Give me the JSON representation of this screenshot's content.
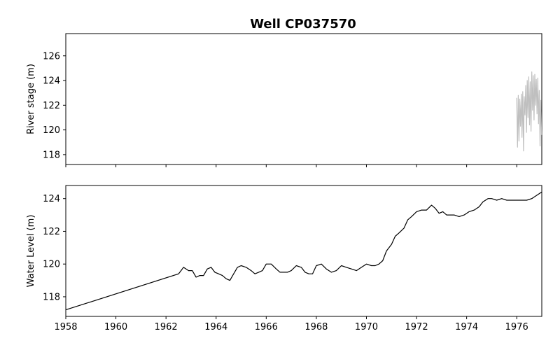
{
  "title": "Well CP037570",
  "chart_data": [
    {
      "type": "line",
      "ylabel": "River stage (m)",
      "xlim": [
        1958.0,
        1977.0
      ],
      "ylim": [
        117.2,
        127.8
      ],
      "x_ticks": [
        1958,
        1960,
        1962,
        1964,
        1966,
        1968,
        1970,
        1972,
        1974,
        1976
      ],
      "x_tick_labels_visible": false,
      "y_ticks": [
        118,
        120,
        122,
        124,
        126
      ],
      "y_tick_labels": [
        "118",
        "120",
        "122",
        "124",
        "126"
      ],
      "series": [
        {
          "color": "#bfbfbf",
          "x": [
            1976.0,
            1976.03,
            1976.06,
            1976.09,
            1976.12,
            1976.15,
            1976.18,
            1976.21,
            1976.24,
            1976.27,
            1976.3,
            1976.33,
            1976.36,
            1976.39,
            1976.42,
            1976.45,
            1976.48,
            1976.51,
            1976.54,
            1976.57,
            1976.6,
            1976.63,
            1976.66,
            1976.69,
            1976.72,
            1976.75,
            1976.78,
            1976.81,
            1976.84,
            1976.87,
            1976.9,
            1976.93,
            1976.96,
            1976.99
          ],
          "y": [
            122.6,
            118.6,
            122.8,
            119.1,
            122.5,
            120.3,
            122.9,
            119.4,
            123.1,
            118.3,
            122.7,
            121.2,
            123.6,
            119.8,
            124.0,
            121.0,
            124.3,
            120.4,
            123.9,
            119.9,
            124.7,
            121.6,
            124.4,
            120.8,
            124.5,
            122.0,
            124.1,
            121.3,
            124.2,
            120.5,
            123.2,
            118.7,
            122.4,
            119.6
          ]
        }
      ]
    },
    {
      "type": "line",
      "ylabel": "Water Level (m)",
      "xlim": [
        1958.0,
        1977.0
      ],
      "ylim": [
        116.8,
        124.8
      ],
      "x_ticks": [
        1958,
        1960,
        1962,
        1964,
        1966,
        1968,
        1970,
        1972,
        1974,
        1976
      ],
      "x_tick_labels": [
        "1958",
        "1960",
        "1962",
        "1964",
        "1966",
        "1968",
        "1970",
        "1972",
        "1974",
        "1976"
      ],
      "y_ticks": [
        118,
        120,
        122,
        124
      ],
      "y_tick_labels": [
        "118",
        "120",
        "122",
        "124"
      ],
      "series": [
        {
          "color": "#000000",
          "x": [
            1958.0,
            1962.5,
            1962.7,
            1962.9,
            1963.05,
            1963.2,
            1963.35,
            1963.5,
            1963.65,
            1963.8,
            1963.95,
            1964.1,
            1964.25,
            1964.4,
            1964.55,
            1964.7,
            1964.85,
            1965.0,
            1965.2,
            1965.4,
            1965.55,
            1965.7,
            1965.85,
            1966.0,
            1966.2,
            1966.4,
            1966.55,
            1966.7,
            1966.85,
            1967.0,
            1967.2,
            1967.4,
            1967.55,
            1967.7,
            1967.85,
            1968.0,
            1968.2,
            1968.4,
            1968.6,
            1968.8,
            1969.0,
            1969.2,
            1969.4,
            1969.6,
            1969.8,
            1970.0,
            1970.2,
            1970.35,
            1970.5,
            1970.65,
            1970.8,
            1971.0,
            1971.15,
            1971.3,
            1971.5,
            1971.65,
            1971.8,
            1972.0,
            1972.2,
            1972.4,
            1972.6,
            1972.75,
            1972.9,
            1973.05,
            1973.2,
            1973.35,
            1973.5,
            1973.7,
            1973.9,
            1974.1,
            1974.3,
            1974.5,
            1974.65,
            1974.85,
            1975.0,
            1975.2,
            1975.4,
            1975.6,
            1975.8,
            1976.0,
            1976.2,
            1976.4,
            1976.6,
            1976.8,
            1977.0
          ],
          "y": [
            117.2,
            119.4,
            119.8,
            119.6,
            119.6,
            119.2,
            119.3,
            119.3,
            119.7,
            119.8,
            119.5,
            119.4,
            119.3,
            119.1,
            119.0,
            119.4,
            119.8,
            119.9,
            119.8,
            119.6,
            119.4,
            119.5,
            119.6,
            120.0,
            120.0,
            119.7,
            119.5,
            119.5,
            119.5,
            119.6,
            119.9,
            119.8,
            119.5,
            119.4,
            119.4,
            119.9,
            120.0,
            119.7,
            119.5,
            119.6,
            119.9,
            119.8,
            119.7,
            119.6,
            119.8,
            120.0,
            119.9,
            119.9,
            120.0,
            120.2,
            120.8,
            121.2,
            121.7,
            121.9,
            122.2,
            122.7,
            122.9,
            123.2,
            123.3,
            123.3,
            123.6,
            123.4,
            123.1,
            123.2,
            123.0,
            123.0,
            123.0,
            122.9,
            123.0,
            123.2,
            123.3,
            123.5,
            123.8,
            124.0,
            124.0,
            123.9,
            124.0,
            123.9,
            123.9,
            123.9,
            123.9,
            123.9,
            124.0,
            124.2,
            124.4
          ]
        }
      ]
    }
  ]
}
